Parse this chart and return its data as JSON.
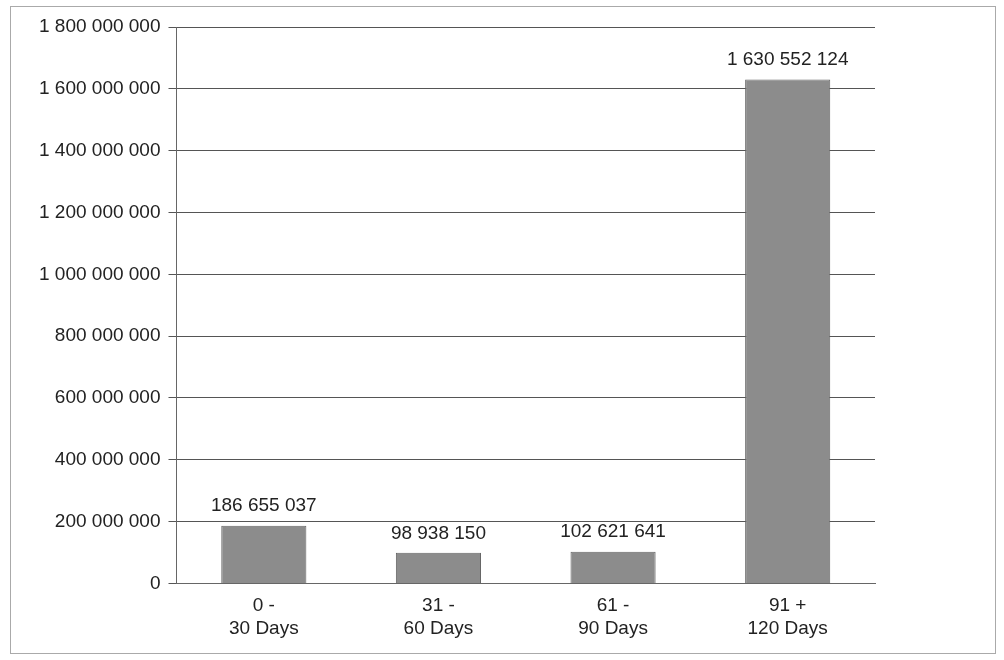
{
  "chart_data": {
    "type": "bar",
    "categories": [
      "0 -\n30 Days",
      "31 -\n60 Days",
      "61 -\n90 Days",
      "91 +\n120 Days"
    ],
    "values": [
      186655037,
      98938150,
      102621641,
      1630552124
    ],
    "value_labels": [
      "186 655 037",
      "98 938 150",
      "102 621 641",
      "1 630 552 124"
    ],
    "color": "#8c8c8c",
    "ylim": [
      0,
      1800000000
    ],
    "yticks": [
      {
        "value": 0,
        "label": "0"
      },
      {
        "value": 200000000,
        "label": "200 000 000"
      },
      {
        "value": 400000000,
        "label": "400 000 000"
      },
      {
        "value": 600000000,
        "label": "600 000 000"
      },
      {
        "value": 800000000,
        "label": "800 000 000"
      },
      {
        "value": 1000000000,
        "label": "1 000 000 000"
      },
      {
        "value": 1200000000,
        "label": "1 200 000 000"
      },
      {
        "value": 1400000000,
        "label": "1 400 000 000"
      },
      {
        "value": 1600000000,
        "label": "1 600 000 000"
      },
      {
        "value": 1800000000,
        "label": "1 800 000 000"
      }
    ],
    "grid": "y"
  }
}
